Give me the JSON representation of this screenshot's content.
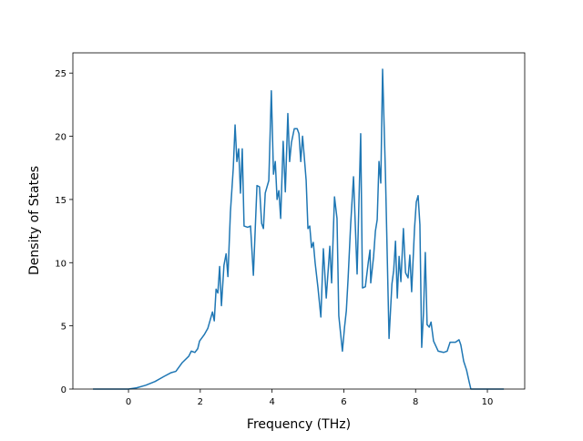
{
  "chart_data": {
    "type": "line",
    "xlabel": "Frequency (THz)",
    "ylabel": "Density of States",
    "color": "#1f77b4",
    "x": [
      -0.99,
      0,
      0.23,
      0.48,
      0.74,
      0.99,
      1.19,
      1.32,
      1.5,
      1.68,
      1.75,
      1.85,
      1.93,
      1.98,
      2.11,
      2.21,
      2.28,
      2.34,
      2.39,
      2.44,
      2.49,
      2.54,
      2.59,
      2.66,
      2.72,
      2.77,
      2.84,
      2.92,
      2.97,
      3.02,
      3.07,
      3.12,
      3.17,
      3.22,
      3.32,
      3.4,
      3.48,
      3.58,
      3.65,
      3.71,
      3.76,
      3.81,
      3.91,
      3.98,
      4.04,
      4.09,
      4.14,
      4.19,
      4.24,
      4.31,
      4.37,
      4.44,
      4.49,
      4.54,
      4.62,
      4.7,
      4.75,
      4.8,
      4.85,
      4.9,
      4.95,
      5.0,
      5.05,
      5.1,
      5.15,
      5.2,
      5.28,
      5.36,
      5.43,
      5.51,
      5.61,
      5.66,
      5.74,
      5.81,
      5.86,
      5.96,
      6.02,
      6.07,
      6.12,
      6.19,
      6.27,
      6.37,
      6.47,
      6.52,
      6.6,
      6.68,
      6.73,
      6.75,
      6.83,
      6.88,
      6.93,
      6.98,
      7.03,
      7.08,
      7.16,
      7.21,
      7.26,
      7.34,
      7.39,
      7.44,
      7.49,
      7.54,
      7.59,
      7.66,
      7.72,
      7.79,
      7.84,
      7.89,
      7.97,
      8.02,
      8.07,
      8.12,
      8.17,
      8.22,
      8.27,
      8.32,
      8.38,
      8.43,
      8.5,
      8.63,
      8.78,
      8.88,
      8.96,
      9.11,
      9.16,
      9.21,
      9.26,
      9.34,
      9.42,
      9.49,
      9.54,
      10.46
    ],
    "values": [
      0,
      0,
      0.1,
      0.3,
      0.6,
      1.0,
      1.3,
      1.4,
      2.1,
      2.6,
      3.0,
      2.9,
      3.2,
      3.8,
      4.3,
      4.8,
      5.5,
      6.1,
      5.4,
      7.9,
      7.6,
      9.7,
      6.6,
      9.8,
      10.7,
      8.9,
      14,
      17.5,
      20.9,
      18,
      19,
      15.5,
      19,
      12.9,
      12.8,
      12.9,
      9.0,
      16.1,
      16.0,
      13.1,
      12.7,
      15.5,
      16.5,
      23.6,
      17,
      18,
      15,
      15.7,
      13.5,
      19.6,
      15.6,
      21.8,
      18,
      19.5,
      20.6,
      20.6,
      20.2,
      18,
      20,
      18.3,
      16.5,
      12.7,
      12.9,
      11.2,
      11.6,
      10,
      8,
      5.7,
      11.1,
      7.2,
      11.3,
      8.4,
      15.2,
      13.5,
      5.8,
      3.0,
      4.9,
      6.2,
      8.8,
      13,
      16.8,
      9.1,
      20.2,
      8.0,
      8.1,
      10,
      11,
      8.4,
      10.5,
      12.5,
      13.4,
      18,
      16.3,
      25.3,
      17,
      10.5,
      4.0,
      8.3,
      9.4,
      11.7,
      7.2,
      10.5,
      8.5,
      12.7,
      9.2,
      8.8,
      10.6,
      7.7,
      12.7,
      14.8,
      15.3,
      13,
      3.3,
      6,
      10.8,
      5.1,
      4.9,
      5.3,
      3.8,
      3.0,
      2.9,
      3.0,
      3.7,
      3.7,
      3.8,
      3.9,
      3.5,
      2.2,
      1.5,
      0.6,
      0,
      0
    ],
    "xlim": [
      -1.55,
      11.04
    ],
    "ylim": [
      0,
      26.6
    ],
    "xticks": [
      0,
      2,
      4,
      6,
      8,
      10
    ],
    "yticks": [
      0,
      5,
      10,
      15,
      20,
      25
    ]
  }
}
